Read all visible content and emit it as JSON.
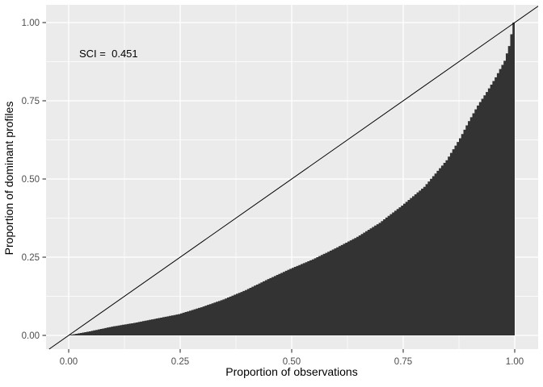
{
  "figure": {
    "background": "#FFFFFF",
    "panel_background": "#EBEBEB",
    "gridline_color": "#FFFFFF",
    "area_fill_color": "#333333",
    "diagonal_line_color": "#000000",
    "tick_color": "#333333",
    "tick_label_color": "#4D4D4D",
    "axis_title_color": "#000000"
  },
  "annotation": {
    "label": "SCI =  0.451",
    "sci_value": 0.451
  },
  "chart_data": {
    "type": "area",
    "title": "",
    "xlabel": "Proportion of observations",
    "ylabel": "Proportion of dominant profiles",
    "xlim": [
      0,
      1
    ],
    "ylim": [
      0,
      1
    ],
    "grid": true,
    "legend_position": "none",
    "x_ticks": [
      "0.00",
      "0.25",
      "0.50",
      "0.75",
      "1.00"
    ],
    "y_ticks": [
      "0.00",
      "0.25",
      "0.50",
      "0.75",
      "1.00"
    ],
    "x_tick_values": [
      0,
      0.25,
      0.5,
      0.75,
      1
    ],
    "y_tick_values": [
      0,
      0.25,
      0.5,
      0.75,
      1
    ],
    "minor_tick_values": [
      0.125,
      0.375,
      0.625,
      0.875
    ],
    "series": [
      {
        "name": "lorenz-curve-area",
        "type": "step-area",
        "color": "#333333",
        "points": [
          [
            0.0,
            0.0
          ],
          [
            0.05,
            0.013
          ],
          [
            0.1,
            0.028
          ],
          [
            0.15,
            0.04
          ],
          [
            0.2,
            0.054
          ],
          [
            0.25,
            0.068
          ],
          [
            0.3,
            0.09
          ],
          [
            0.35,
            0.115
          ],
          [
            0.4,
            0.145
          ],
          [
            0.45,
            0.18
          ],
          [
            0.5,
            0.213
          ],
          [
            0.55,
            0.243
          ],
          [
            0.6,
            0.278
          ],
          [
            0.65,
            0.315
          ],
          [
            0.7,
            0.36
          ],
          [
            0.75,
            0.415
          ],
          [
            0.8,
            0.475
          ],
          [
            0.85,
            0.56
          ],
          [
            0.88,
            0.63
          ],
          [
            0.9,
            0.685
          ],
          [
            0.92,
            0.735
          ],
          [
            0.94,
            0.778
          ],
          [
            0.96,
            0.825
          ],
          [
            0.98,
            0.878
          ],
          [
            0.99,
            0.925
          ],
          [
            1.0,
            1.0
          ]
        ]
      },
      {
        "name": "equality-line",
        "type": "line",
        "color": "#000000",
        "from": [
          0,
          0
        ],
        "to": [
          1,
          1
        ]
      }
    ],
    "annotations": [
      {
        "text": "SCI =  0.451",
        "x": 0.1,
        "y": 0.9
      }
    ]
  }
}
